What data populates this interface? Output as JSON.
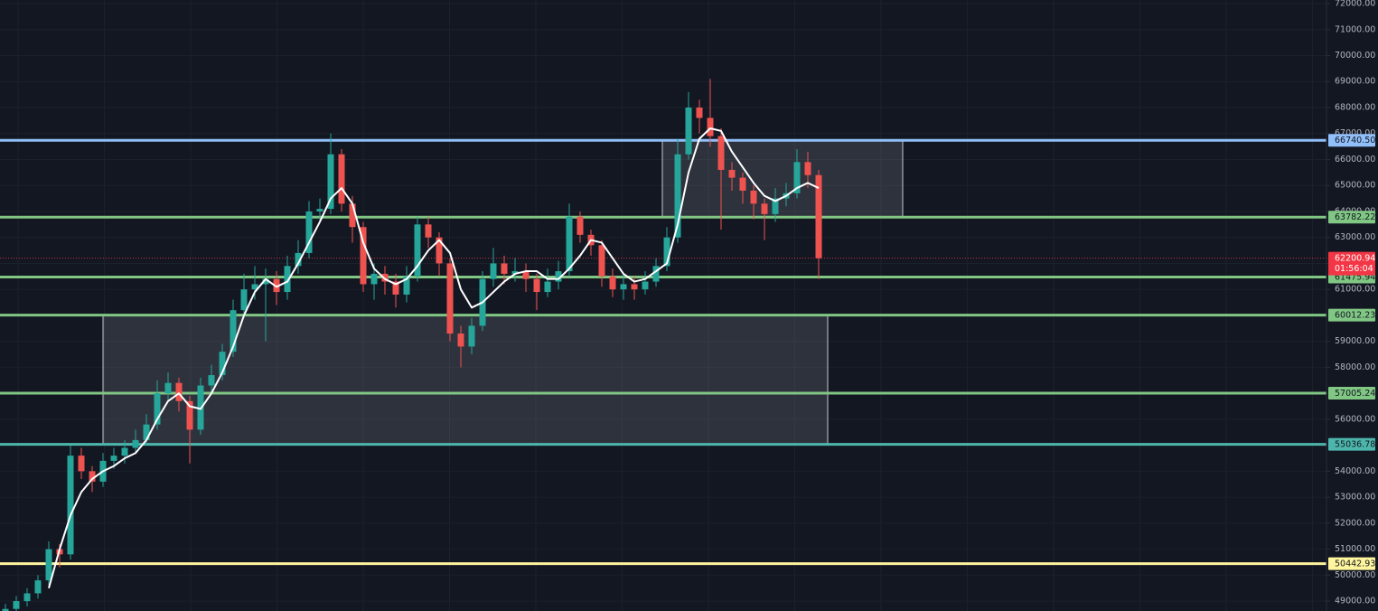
{
  "chart_data": {
    "type": "candlestick",
    "up_color": "#26a69a",
    "down_color": "#ef5350",
    "grid": true,
    "ylim": [
      48620,
      72140
    ],
    "yticks": [
      {
        "value": 49000,
        "label": "49000.00"
      },
      {
        "value": 50000,
        "label": "50000.00"
      },
      {
        "value": 51000,
        "label": "51000.00"
      },
      {
        "value": 52000,
        "label": "52000.00"
      },
      {
        "value": 53000,
        "label": "53000.00"
      },
      {
        "value": 54000,
        "label": "54000.00"
      },
      {
        "value": 55000,
        "label": "55000.00"
      },
      {
        "value": 56000,
        "label": "56000.00"
      },
      {
        "value": 57000,
        "label": "57000.00"
      },
      {
        "value": 58000,
        "label": "58000.00"
      },
      {
        "value": 59000,
        "label": "59000.00"
      },
      {
        "value": 60000,
        "label": "60000.00"
      },
      {
        "value": 61000,
        "label": "61000.00"
      },
      {
        "value": 62000,
        "label": "62000.00"
      },
      {
        "value": 63000,
        "label": "63000.00"
      },
      {
        "value": 64000,
        "label": "64000.00"
      },
      {
        "value": 65000,
        "label": "65000.00"
      },
      {
        "value": 66000,
        "label": "66000.00"
      },
      {
        "value": 67000,
        "label": "67000.00"
      },
      {
        "value": 68000,
        "label": "68000.00"
      },
      {
        "value": 69000,
        "label": "69000.00"
      },
      {
        "value": 70000,
        "label": "70000.00"
      },
      {
        "value": 71000,
        "label": "71000.00"
      },
      {
        "value": 72000,
        "label": "72000.00"
      }
    ],
    "open": [
      48400,
      48700,
      49000,
      49300,
      49800,
      51000,
      50800,
      54600,
      54000,
      53600,
      54400,
      54600,
      54900,
      55200,
      55800,
      57000,
      57400,
      56700,
      55600,
      57300,
      57700,
      58600,
      60200,
      61000,
      61200,
      61400,
      60900,
      61900,
      62400,
      64000,
      64100,
      66200,
      64300,
      63400,
      61200,
      61600,
      61300,
      60800,
      61500,
      63500,
      63000,
      62000,
      59300,
      58800,
      59600,
      61400,
      62000,
      61600,
      61700,
      61400,
      60900,
      61300,
      61700,
      63800,
      63100,
      62700,
      61500,
      61000,
      61200,
      61000,
      61300,
      61900,
      63000,
      66200,
      68000,
      67600,
      66900,
      65600,
      65300,
      64800,
      64300,
      63900,
      64500,
      64700,
      65900,
      65400
    ],
    "high": [
      48900,
      49200,
      49500,
      50000,
      51300,
      51200,
      55000,
      54900,
      54200,
      54700,
      54900,
      55200,
      55600,
      56200,
      57500,
      57800,
      57600,
      56900,
      57600,
      58100,
      58900,
      60600,
      61600,
      61900,
      61800,
      61700,
      62300,
      62900,
      64400,
      64500,
      67000,
      66400,
      64600,
      63600,
      62000,
      61900,
      61600,
      61900,
      63800,
      63800,
      63200,
      62200,
      59600,
      59900,
      61700,
      62600,
      62300,
      62200,
      62000,
      61600,
      61800,
      62100,
      64300,
      64000,
      63300,
      62900,
      61800,
      61600,
      61500,
      61700,
      62200,
      63400,
      66800,
      68600,
      68300,
      69100,
      67200,
      65900,
      65500,
      65000,
      64500,
      64900,
      65100,
      66400,
      66300,
      65600
    ],
    "low": [
      48200,
      48500,
      48800,
      49100,
      49600,
      50300,
      50600,
      53700,
      53200,
      53400,
      54100,
      54300,
      54700,
      55000,
      55600,
      56700,
      56300,
      54300,
      55400,
      57000,
      57500,
      58400,
      59900,
      60600,
      59000,
      60400,
      60600,
      61600,
      62200,
      63600,
      63900,
      64000,
      62800,
      60900,
      60600,
      60800,
      60300,
      60500,
      61300,
      62600,
      61500,
      59000,
      58000,
      58500,
      59400,
      61100,
      61200,
      61300,
      60900,
      60200,
      60700,
      61000,
      61500,
      62800,
      62300,
      61100,
      60700,
      60600,
      60600,
      60800,
      61100,
      61700,
      62800,
      66000,
      67000,
      66500,
      63300,
      64800,
      64300,
      63700,
      62900,
      63600,
      64200,
      64500,
      64900,
      61400
    ],
    "close": [
      48700,
      49000,
      49300,
      49800,
      51000,
      50800,
      54600,
      54000,
      53600,
      54400,
      54600,
      54900,
      55200,
      55800,
      57000,
      57400,
      56700,
      55600,
      57300,
      57700,
      58600,
      60200,
      61000,
      61200,
      61400,
      60900,
      61900,
      62400,
      64000,
      64100,
      66200,
      64300,
      63400,
      61200,
      61600,
      61300,
      60800,
      61500,
      63500,
      63000,
      62000,
      59300,
      58800,
      59600,
      61400,
      62000,
      61600,
      61700,
      61400,
      60900,
      61300,
      61700,
      63800,
      63100,
      62700,
      61500,
      61000,
      61200,
      61000,
      61300,
      61900,
      63000,
      66200,
      68000,
      67600,
      66900,
      65600,
      65300,
      64800,
      64300,
      63900,
      64500,
      64700,
      65900,
      65400,
      62200.94
    ],
    "ma": {
      "color": "#ffffff",
      "values": [
        null,
        null,
        null,
        null,
        49500,
        51000,
        52300,
        53200,
        53700,
        54000,
        54200,
        54500,
        54700,
        55200,
        56000,
        56700,
        57000,
        56500,
        56400,
        57000,
        57800,
        58800,
        60000,
        60900,
        61400,
        61100,
        61300,
        62000,
        62800,
        63600,
        64500,
        64900,
        64300,
        62800,
        61800,
        61400,
        61200,
        61400,
        61900,
        62500,
        62900,
        62400,
        61000,
        60300,
        60500,
        60900,
        61300,
        61600,
        61700,
        61700,
        61400,
        61400,
        61800,
        62300,
        62900,
        62800,
        62200,
        61600,
        61300,
        61400,
        61700,
        62000,
        63500,
        65500,
        66800,
        67200,
        67100,
        66300,
        65700,
        65100,
        64600,
        64400,
        64600,
        64900,
        65100,
        64900
      ]
    },
    "zones": [
      {
        "top": 60012.23,
        "bottom": 55036.78
      },
      {
        "top": 66740.5,
        "bottom": 63782.22
      }
    ],
    "levels": [
      {
        "price": {
          "value": 66740.5,
          "label": "66740.50"
        },
        "color": "#90bff9"
      },
      {
        "price": {
          "value": 63782.22,
          "label": "63782.22"
        },
        "color": "#81c784"
      },
      {
        "price": {
          "value": 61475.94,
          "label": "61475.94"
        },
        "color": "#81c784"
      },
      {
        "price": {
          "value": 60012.23,
          "label": "60012.23"
        },
        "color": "#81c784"
      },
      {
        "price": {
          "value": 57005.24,
          "label": "57005.24"
        },
        "color": "#81c784"
      },
      {
        "price": {
          "value": 55036.78,
          "label": "55036.78"
        },
        "color": "#4db6ac"
      },
      {
        "price": {
          "value": 50442.93,
          "label": "50442.93"
        },
        "color": "#fff59d"
      }
    ],
    "current_price": {
      "price": {
        "value": 62200.94,
        "label": "62200.94"
      },
      "countdown": "01:56:04",
      "color": "#f23645"
    }
  }
}
